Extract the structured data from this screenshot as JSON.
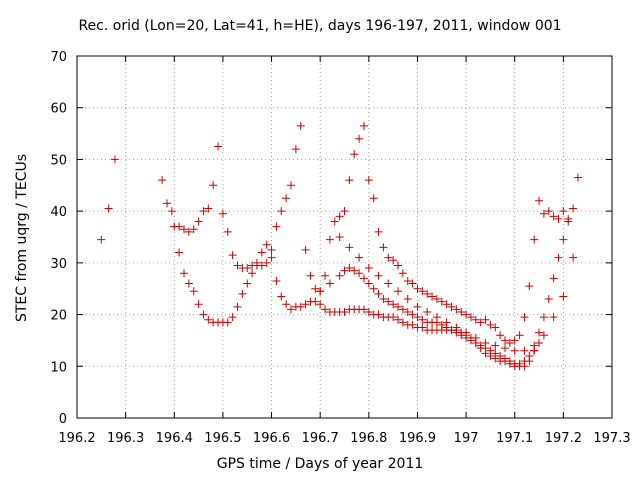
{
  "chart_data": {
    "type": "scatter",
    "title": "Rec. orid (Lon=20, Lat=41, h=HE), days 196-197, 2011, window 001",
    "xlabel": "GPS time / Days of year 2011",
    "ylabel": "STEC from uqrg / TECUs",
    "xlim": [
      196.2,
      197.3
    ],
    "ylim": [
      0,
      70
    ],
    "xticks": [
      "196.2",
      "196.3",
      "196.4",
      "196.5",
      "196.6",
      "196.7",
      "196.8",
      "196.9",
      "197",
      "197.1",
      "197.2",
      "197.3"
    ],
    "yticks": [
      "0",
      "10",
      "20",
      "30",
      "40",
      "50",
      "60",
      "70"
    ],
    "grid": true,
    "marker": "+",
    "color": "#cc0000",
    "series": [
      {
        "x": [
          196.25,
          196.265,
          196.278,
          196.375,
          196.385,
          196.395,
          196.4,
          196.41,
          196.42,
          196.43,
          196.44,
          196.45,
          196.46,
          196.47,
          196.48,
          196.49,
          196.5,
          196.51,
          196.52,
          196.53,
          196.54,
          196.55,
          196.56,
          196.57,
          196.58,
          196.59,
          196.6,
          196.61,
          196.62,
          196.63,
          196.64,
          196.65,
          196.66,
          196.67,
          196.68,
          196.69,
          196.7,
          196.71,
          196.72,
          196.73,
          196.74,
          196.75,
          196.76,
          196.77,
          196.78,
          196.79,
          196.8,
          196.81,
          196.82,
          196.83,
          196.84,
          196.85,
          196.86,
          196.87,
          196.88,
          196.89,
          196.9,
          196.91,
          196.92,
          196.93,
          196.94,
          196.95,
          196.96,
          196.97,
          196.98,
          196.99,
          197.0,
          197.01,
          197.02,
          197.03,
          197.04,
          197.05,
          197.06,
          197.07,
          197.08,
          197.09,
          197.1,
          197.11,
          197.12,
          197.13,
          197.14,
          197.15,
          197.16,
          197.17,
          197.18,
          197.19,
          197.2,
          197.21,
          197.22,
          197.23
        ],
        "y": [
          34.5,
          40.5,
          50,
          46,
          41.5,
          40,
          37,
          37,
          36.5,
          36,
          36.5,
          38,
          40,
          40.5,
          45,
          52.5,
          39.5,
          36,
          31.5,
          29.5,
          29,
          29,
          29.5,
          29.5,
          29.5,
          30,
          32.5,
          37,
          40,
          42.5,
          45,
          52,
          56.5,
          32.5,
          27.5,
          25,
          24.5,
          27.5,
          34.5,
          38,
          39,
          40,
          46,
          51,
          54,
          56.5,
          46,
          42.5,
          36,
          33,
          31,
          30.5,
          29.5,
          28,
          26.5,
          26,
          25,
          24.5,
          24,
          23.5,
          23,
          22.5,
          22,
          21.5,
          21,
          20.5,
          20,
          19.5,
          19,
          18.5,
          19,
          18,
          17.5,
          16,
          15,
          14.5,
          15,
          16,
          19.5,
          25.5,
          34.5,
          42,
          39.5,
          40,
          39,
          38.5,
          40,
          38.5,
          40.5,
          46.5
        ]
      },
      {
        "x": [
          196.41,
          196.42,
          196.43,
          196.44,
          196.45,
          196.46,
          196.47,
          196.48,
          196.49,
          196.5,
          196.51,
          196.52,
          196.53,
          196.54,
          196.55,
          196.56,
          196.57,
          196.58,
          196.59,
          196.6,
          196.61,
          196.62,
          196.63,
          196.64,
          196.65,
          196.66,
          196.67,
          196.68,
          196.69,
          196.7,
          196.71,
          196.72,
          196.73,
          196.74,
          196.75,
          196.76,
          196.77,
          196.78,
          196.79,
          196.8,
          196.81,
          196.82,
          196.83,
          196.84,
          196.85,
          196.86,
          196.87,
          196.88,
          196.89,
          196.9,
          196.91,
          196.92,
          196.93,
          196.94,
          196.95,
          196.96,
          196.97,
          196.98,
          196.99,
          197.0,
          197.01,
          197.02,
          197.03,
          197.04,
          197.05,
          197.06,
          197.07,
          197.08,
          197.09,
          197.1,
          197.11,
          197.12,
          197.13,
          197.14,
          197.15,
          197.16,
          197.17,
          197.18,
          197.19,
          197.2,
          197.21
        ],
        "y": [
          32,
          28,
          26,
          24.5,
          22,
          20,
          19,
          18.5,
          18.5,
          18.5,
          18.5,
          19.5,
          21.5,
          24,
          26,
          28,
          30,
          32,
          33.5,
          31,
          26.5,
          23.5,
          22,
          21,
          21.5,
          21.5,
          22,
          22.5,
          22.5,
          22,
          21,
          20.5,
          20.5,
          20.5,
          20.5,
          21,
          21,
          21,
          21,
          20.5,
          20,
          20,
          19.5,
          19.5,
          19.5,
          19,
          18.5,
          18,
          18,
          17.5,
          17.5,
          17,
          17,
          17,
          17,
          17,
          17,
          17,
          16.5,
          16,
          15.5,
          14.5,
          13.5,
          12.5,
          12,
          11.5,
          11,
          11,
          10.5,
          10,
          10,
          10,
          11,
          13,
          16.5,
          19.5,
          23,
          27,
          31,
          34.5,
          38
        ]
      },
      {
        "x": [
          196.7,
          196.72,
          196.74,
          196.75,
          196.76,
          196.77,
          196.78,
          196.79,
          196.8,
          196.81,
          196.82,
          196.83,
          196.84,
          196.85,
          196.86,
          196.87,
          196.88,
          196.89,
          196.9,
          196.91,
          196.92,
          196.93,
          196.94,
          196.95,
          196.96,
          196.97,
          196.98,
          196.99,
          197.0,
          197.01,
          197.02,
          197.03,
          197.04,
          197.05,
          197.06,
          197.07,
          197.08,
          197.09,
          197.1,
          197.11,
          197.12,
          197.13,
          197.14,
          197.15
        ],
        "y": [
          24.5,
          26,
          27.5,
          28.5,
          29,
          28.5,
          28,
          27,
          26,
          25,
          24,
          23,
          22.5,
          22,
          21.5,
          21,
          20.5,
          20,
          19.5,
          19,
          18.5,
          18.5,
          18.5,
          18,
          17.5,
          17,
          16.5,
          16,
          15.5,
          15,
          14.5,
          14,
          13.5,
          13,
          12.5,
          12,
          11.5,
          11,
          10.5,
          10.5,
          11,
          12,
          13,
          14.5
        ]
      },
      {
        "x": [
          196.74,
          196.76,
          196.78,
          196.8,
          196.82,
          196.84,
          196.86,
          196.88,
          196.9,
          196.92,
          196.94,
          196.96,
          196.98,
          197.0,
          197.02,
          197.04,
          197.06,
          197.08,
          197.1,
          197.12,
          197.14,
          197.16,
          197.18,
          197.2,
          197.22
        ],
        "y": [
          35,
          33,
          31,
          29,
          27.5,
          26,
          24.5,
          23,
          21.5,
          20.5,
          19.5,
          18.5,
          17.5,
          16.5,
          15.5,
          14.5,
          14,
          13.5,
          13,
          13,
          14,
          16,
          19.5,
          23.5,
          31
        ]
      }
    ]
  }
}
